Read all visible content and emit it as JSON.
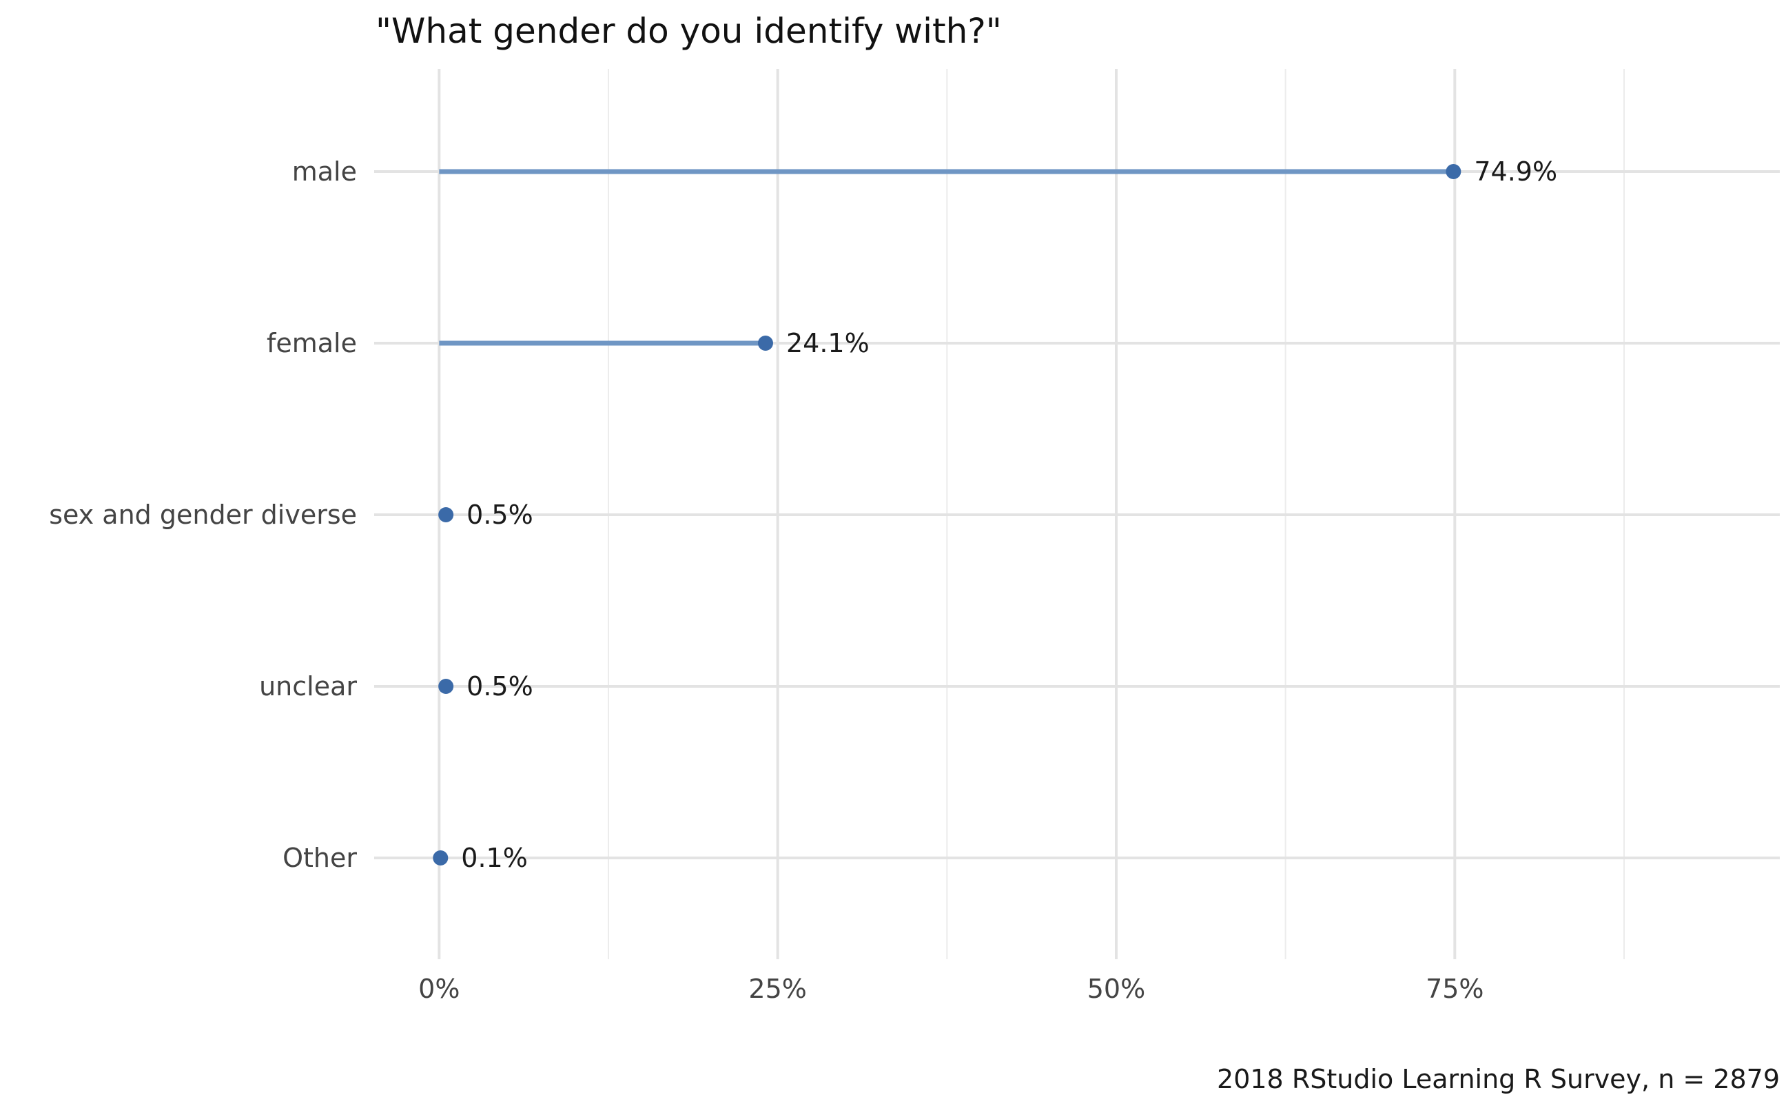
{
  "chart_data": {
    "type": "lollipop",
    "title": "\"What gender do you identify with?\"",
    "caption": "2018 RStudio Learning R Survey, n = 2879",
    "xlabel": "",
    "ylabel": "",
    "categories": [
      "male",
      "female",
      "sex and gender diverse",
      "unclear",
      "Other"
    ],
    "values": [
      74.9,
      24.1,
      0.5,
      0.5,
      0.1
    ],
    "data_labels": [
      "74.9%",
      "24.1%",
      "0.5%",
      "0.5%",
      "0.1%"
    ],
    "x_ticks": [
      0,
      25,
      50,
      75
    ],
    "x_tick_labels": [
      "0%",
      "25%",
      "50%",
      "75%"
    ],
    "xlim": [
      -4.8,
      99
    ],
    "grid": true,
    "legend": "none",
    "colors": {
      "point": "#3b6aa8",
      "stem": "#6f96c4",
      "grid": "#e3e3e3"
    }
  }
}
